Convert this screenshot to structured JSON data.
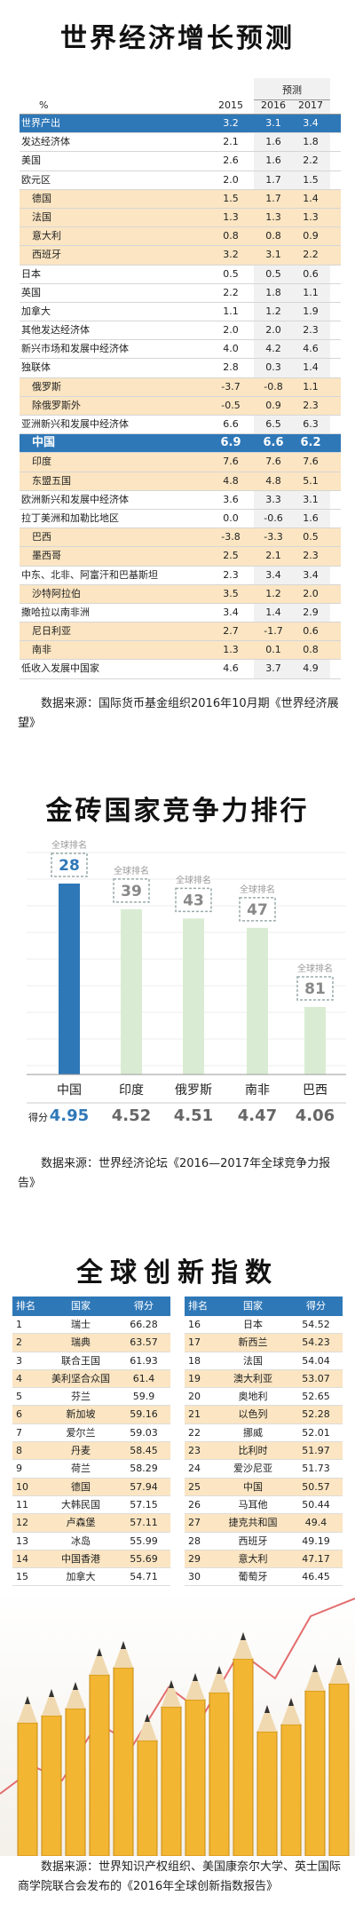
{
  "section1": {
    "title": "世界经济增长预测",
    "unit_label": "%",
    "years": [
      "2015",
      "2016",
      "2017"
    ],
    "forecast_label": "预测",
    "rows": [
      {
        "name": "世界产出",
        "v": [
          "3.2",
          "3.1",
          "3.4"
        ],
        "style": "world",
        "level": 1
      },
      {
        "name": "发达经济体",
        "v": [
          "2.1",
          "1.6",
          "1.8"
        ],
        "style": "",
        "level": 1
      },
      {
        "name": "美国",
        "v": [
          "2.6",
          "1.6",
          "2.2"
        ],
        "style": "",
        "level": 1
      },
      {
        "name": "欧元区",
        "v": [
          "2.0",
          "1.7",
          "1.5"
        ],
        "style": "",
        "level": 1
      },
      {
        "name": "德国",
        "v": [
          "1.5",
          "1.7",
          "1.4"
        ],
        "style": "shade",
        "level": 2
      },
      {
        "name": "法国",
        "v": [
          "1.3",
          "1.3",
          "1.3"
        ],
        "style": "shade",
        "level": 2
      },
      {
        "name": "意大利",
        "v": [
          "0.8",
          "0.8",
          "0.9"
        ],
        "style": "shade",
        "level": 2
      },
      {
        "name": "西班牙",
        "v": [
          "3.2",
          "3.1",
          "2.2"
        ],
        "style": "shade",
        "level": 2
      },
      {
        "name": "日本",
        "v": [
          "0.5",
          "0.5",
          "0.6"
        ],
        "style": "",
        "level": 1
      },
      {
        "name": "英国",
        "v": [
          "2.2",
          "1.8",
          "1.1"
        ],
        "style": "",
        "level": 1
      },
      {
        "name": "加拿大",
        "v": [
          "1.1",
          "1.2",
          "1.9"
        ],
        "style": "",
        "level": 1
      },
      {
        "name": "其他发达经济体",
        "v": [
          "2.0",
          "2.0",
          "2.3"
        ],
        "style": "",
        "level": 1
      },
      {
        "name": "新兴市场和发展中经济体",
        "v": [
          "4.0",
          "4.2",
          "4.6"
        ],
        "style": "",
        "level": 1
      },
      {
        "name": "独联体",
        "v": [
          "2.8",
          "0.3",
          "1.4"
        ],
        "style": "",
        "level": 1
      },
      {
        "name": "俄罗斯",
        "v": [
          "-3.7",
          "-0.8",
          "1.1"
        ],
        "style": "shade",
        "level": 2
      },
      {
        "name": "除俄罗斯外",
        "v": [
          "-0.5",
          "0.9",
          "2.3"
        ],
        "style": "shade",
        "level": 2
      },
      {
        "name": "亚洲新兴和发展中经济体",
        "v": [
          "6.6",
          "6.5",
          "6.3"
        ],
        "style": "",
        "level": 1
      },
      {
        "name": "中国",
        "v": [
          "6.9",
          "6.6",
          "6.2"
        ],
        "style": "china",
        "level": 2
      },
      {
        "name": "印度",
        "v": [
          "7.6",
          "7.6",
          "7.6"
        ],
        "style": "shade",
        "level": 2
      },
      {
        "name": "东盟五国",
        "v": [
          "4.8",
          "4.8",
          "5.1"
        ],
        "style": "shade",
        "level": 2
      },
      {
        "name": "欧洲新兴和发展中经济体",
        "v": [
          "3.6",
          "3.3",
          "3.1"
        ],
        "style": "",
        "level": 1
      },
      {
        "name": "拉丁美洲和加勒比地区",
        "v": [
          "0.0",
          "-0.6",
          "1.6"
        ],
        "style": "",
        "level": 1
      },
      {
        "name": "巴西",
        "v": [
          "-3.8",
          "-3.3",
          "0.5"
        ],
        "style": "shade",
        "level": 2
      },
      {
        "name": "墨西哥",
        "v": [
          "2.5",
          "2.1",
          "2.3"
        ],
        "style": "shade",
        "level": 2
      },
      {
        "name": "中东、北非、阿富汗和巴基斯坦",
        "v": [
          "2.3",
          "3.4",
          "3.4"
        ],
        "style": "",
        "level": 1
      },
      {
        "name": "沙特阿拉伯",
        "v": [
          "3.5",
          "1.2",
          "2.0"
        ],
        "style": "shade",
        "level": 2
      },
      {
        "name": "撒哈拉以南非洲",
        "v": [
          "3.4",
          "1.4",
          "2.9"
        ],
        "style": "",
        "level": 1
      },
      {
        "name": "尼日利亚",
        "v": [
          "2.7",
          "-1.7",
          "0.6"
        ],
        "style": "shade",
        "level": 2
      },
      {
        "name": "南非",
        "v": [
          "1.3",
          "0.1",
          "0.8"
        ],
        "style": "shade",
        "level": 2
      },
      {
        "name": "低收入发展中国家",
        "v": [
          "4.6",
          "3.7",
          "4.9"
        ],
        "style": "",
        "level": 1
      }
    ],
    "source": "数据来源：国际货币基金组织2016年10月期《世界经济展望》"
  },
  "section2": {
    "title": "金砖国家竞争力排行",
    "rank_label": "全球排名",
    "score_label": "得分",
    "source": "数据来源：世界经济论坛《2016—2017年全球竞争力报告》"
  },
  "chart_data": {
    "type": "bar",
    "categories": [
      "中国",
      "印度",
      "俄罗斯",
      "南非",
      "巴西"
    ],
    "series": [
      {
        "name": "全球排名",
        "values": [
          28,
          39,
          43,
          47,
          81
        ]
      },
      {
        "name": "得分",
        "values": [
          4.95,
          4.52,
          4.51,
          4.47,
          4.06
        ]
      }
    ],
    "score_text": [
      "4.95",
      "4.52",
      "4.51",
      "4.47",
      "4.06"
    ],
    "colors": {
      "china": "#2f78b8",
      "other": "#d9ecd3"
    }
  },
  "section3": {
    "title": "全球创新指数",
    "headers": [
      "排名",
      "国家",
      "得分"
    ],
    "left": [
      [
        "1",
        "瑞士",
        "66.28"
      ],
      [
        "2",
        "瑞典",
        "63.57"
      ],
      [
        "3",
        "联合王国",
        "61.93"
      ],
      [
        "4",
        "美利坚合众国",
        "61.4"
      ],
      [
        "5",
        "芬兰",
        "59.9"
      ],
      [
        "6",
        "新加坡",
        "59.16"
      ],
      [
        "7",
        "爱尔兰",
        "59.03"
      ],
      [
        "8",
        "丹麦",
        "58.45"
      ],
      [
        "9",
        "荷兰",
        "58.29"
      ],
      [
        "10",
        "德国",
        "57.94"
      ],
      [
        "11",
        "大韩民国",
        "57.15"
      ],
      [
        "12",
        "卢森堡",
        "57.11"
      ],
      [
        "13",
        "冰岛",
        "55.99"
      ],
      [
        "14",
        "中国香港",
        "55.69"
      ],
      [
        "15",
        "加拿大",
        "54.71"
      ]
    ],
    "right": [
      [
        "16",
        "日本",
        "54.52"
      ],
      [
        "17",
        "新西兰",
        "54.23"
      ],
      [
        "18",
        "法国",
        "54.04"
      ],
      [
        "19",
        "澳大利亚",
        "53.07"
      ],
      [
        "20",
        "奥地利",
        "52.65"
      ],
      [
        "21",
        "以色列",
        "52.28"
      ],
      [
        "22",
        "挪威",
        "52.01"
      ],
      [
        "23",
        "比利时",
        "51.97"
      ],
      [
        "24",
        "爱沙尼亚",
        "51.73"
      ],
      [
        "25",
        "中国",
        "50.57"
      ],
      [
        "26",
        "马耳他",
        "50.44"
      ],
      [
        "27",
        "捷克共和国",
        "49.4"
      ],
      [
        "28",
        "西班牙",
        "49.19"
      ],
      [
        "29",
        "意大利",
        "47.17"
      ],
      [
        "30",
        "葡萄牙",
        "46.45"
      ]
    ],
    "source": "数据来源：世界知识产权组织、美国康奈尔大学、英士国际商学院联合会发布的《2016年全球创新指数报告》"
  }
}
